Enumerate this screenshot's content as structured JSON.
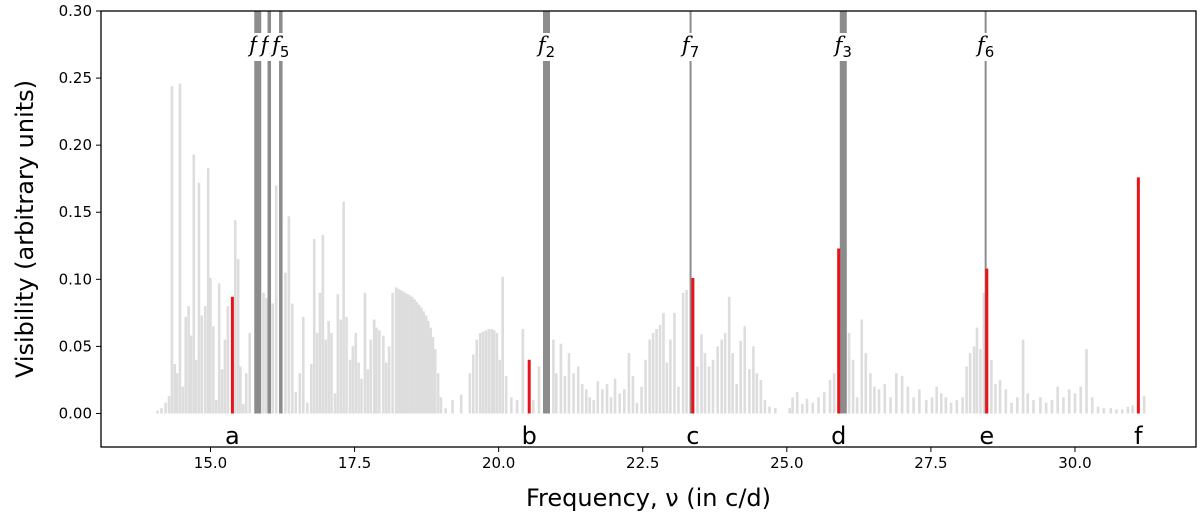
{
  "chart_data": {
    "type": "bar",
    "xlabel": "Frequency, ν (in c/d)",
    "ylabel": "Visibility (arbitrary units)",
    "xlim": [
      13.1,
      32.1
    ],
    "ylim": [
      -0.025,
      0.3
    ],
    "x_ticks": [
      15.0,
      17.5,
      20.0,
      22.5,
      25.0,
      27.5,
      30.0
    ],
    "x_tick_labels": [
      "15.0",
      "17.5",
      "20.0",
      "22.5",
      "25.0",
      "27.5",
      "30.0"
    ],
    "y_ticks": [
      0.0,
      0.05,
      0.1,
      0.15,
      0.2,
      0.25,
      0.3
    ],
    "y_tick_labels": [
      "0.00",
      "0.05",
      "0.10",
      "0.15",
      "0.20",
      "0.25",
      "0.30"
    ],
    "grid": false,
    "colors": {
      "background_bars": "#dddddd",
      "observed_lines": "#8c8c8c",
      "highlight": "#e8141b"
    },
    "observed_frequencies": [
      {
        "label": "f",
        "sub": "1",
        "x": 15.82,
        "strength": "thick"
      },
      {
        "label": "f",
        "sub": "4",
        "x": 16.02,
        "strength": "medium"
      },
      {
        "label": "f",
        "sub": "5",
        "x": 16.22,
        "strength": "medium"
      },
      {
        "label": "f",
        "sub": "2",
        "x": 20.83,
        "strength": "thick"
      },
      {
        "label": "f",
        "sub": "7",
        "x": 23.33,
        "strength": "thin"
      },
      {
        "label": "f",
        "sub": "3",
        "x": 25.98,
        "strength": "thick"
      },
      {
        "label": "f",
        "sub": "6",
        "x": 28.45,
        "strength": "thin"
      }
    ],
    "highlighted_modes": [
      {
        "label": "a",
        "x": 15.38,
        "value": 0.087
      },
      {
        "label": "b",
        "x": 20.53,
        "value": 0.04
      },
      {
        "label": "c",
        "x": 23.37,
        "value": 0.101
      },
      {
        "label": "d",
        "x": 25.9,
        "value": 0.123
      },
      {
        "label": "e",
        "x": 28.47,
        "value": 0.108
      },
      {
        "label": "f",
        "x": 31.1,
        "value": 0.176
      }
    ],
    "background_modes": [
      [
        14.08,
        0.002
      ],
      [
        14.15,
        0.004
      ],
      [
        14.22,
        0.008
      ],
      [
        14.28,
        0.013
      ],
      [
        14.33,
        0.244
      ],
      [
        14.38,
        0.037
      ],
      [
        14.42,
        0.03
      ],
      [
        14.47,
        0.246
      ],
      [
        14.52,
        0.02
      ],
      [
        14.57,
        0.072
      ],
      [
        14.62,
        0.08
      ],
      [
        14.66,
        0.058
      ],
      [
        14.71,
        0.193
      ],
      [
        14.75,
        0.04
      ],
      [
        14.8,
        0.172
      ],
      [
        14.85,
        0.073
      ],
      [
        14.91,
        0.08
      ],
      [
        14.96,
        0.183
      ],
      [
        15.0,
        0.101
      ],
      [
        15.05,
        0.065
      ],
      [
        15.1,
        0.01
      ],
      [
        15.15,
        0.097
      ],
      [
        15.2,
        0.033
      ],
      [
        15.25,
        0.055
      ],
      [
        15.3,
        0.08
      ],
      [
        15.43,
        0.144
      ],
      [
        15.48,
        0.115
      ],
      [
        15.52,
        0.035
      ],
      [
        15.57,
        0.007
      ],
      [
        15.62,
        0.03
      ],
      [
        15.68,
        0.06
      ],
      [
        15.92,
        0.09
      ],
      [
        15.97,
        0.086
      ],
      [
        16.08,
        0.082
      ],
      [
        16.14,
        0.17
      ],
      [
        16.3,
        0.105
      ],
      [
        16.36,
        0.147
      ],
      [
        16.42,
        0.082
      ],
      [
        16.48,
        0.016
      ],
      [
        16.55,
        0.03
      ],
      [
        16.61,
        0.072
      ],
      [
        16.68,
        0.008
      ],
      [
        16.75,
        0.037
      ],
      [
        16.8,
        0.13
      ],
      [
        16.85,
        0.06
      ],
      [
        16.9,
        0.09
      ],
      [
        16.95,
        0.133
      ],
      [
        17.0,
        0.055
      ],
      [
        17.05,
        0.069
      ],
      [
        17.1,
        0.06
      ],
      [
        17.16,
        0.015
      ],
      [
        17.21,
        0.089
      ],
      [
        17.26,
        0.07
      ],
      [
        17.31,
        0.158
      ],
      [
        17.36,
        0.072
      ],
      [
        17.42,
        0.04
      ],
      [
        17.47,
        0.05
      ],
      [
        17.52,
        0.06
      ],
      [
        17.57,
        0.038
      ],
      [
        17.62,
        0.026
      ],
      [
        17.68,
        0.09
      ],
      [
        17.73,
        0.033
      ],
      [
        17.78,
        0.055
      ],
      [
        17.84,
        0.07
      ],
      [
        17.88,
        0.064
      ],
      [
        17.93,
        0.062
      ],
      [
        18.0,
        0.058
      ],
      [
        18.05,
        0.038
      ],
      [
        18.1,
        0.05
      ],
      [
        18.16,
        0.09
      ],
      [
        18.22,
        0.094
      ],
      [
        18.26,
        0.093
      ],
      [
        18.3,
        0.092
      ],
      [
        18.34,
        0.091
      ],
      [
        18.38,
        0.09
      ],
      [
        18.42,
        0.089
      ],
      [
        18.46,
        0.088
      ],
      [
        18.5,
        0.087
      ],
      [
        18.54,
        0.085
      ],
      [
        18.58,
        0.083
      ],
      [
        18.62,
        0.081
      ],
      [
        18.66,
        0.079
      ],
      [
        18.7,
        0.076
      ],
      [
        18.74,
        0.073
      ],
      [
        18.78,
        0.069
      ],
      [
        18.82,
        0.064
      ],
      [
        18.86,
        0.057
      ],
      [
        18.9,
        0.048
      ],
      [
        18.95,
        0.03
      ],
      [
        19.0,
        0.012
      ],
      [
        19.08,
        0.004
      ],
      [
        19.2,
        0.01
      ],
      [
        19.35,
        0.014
      ],
      [
        19.5,
        0.03
      ],
      [
        19.56,
        0.044
      ],
      [
        19.62,
        0.055
      ],
      [
        19.68,
        0.06
      ],
      [
        19.73,
        0.061
      ],
      [
        19.78,
        0.062
      ],
      [
        19.83,
        0.063
      ],
      [
        19.88,
        0.063
      ],
      [
        19.92,
        0.062
      ],
      [
        19.97,
        0.06
      ],
      [
        20.02,
        0.04
      ],
      [
        20.07,
        0.102
      ],
      [
        20.13,
        0.028
      ],
      [
        20.22,
        0.012
      ],
      [
        20.32,
        0.01
      ],
      [
        20.42,
        0.063
      ],
      [
        20.6,
        0.01
      ],
      [
        20.7,
        0.035
      ],
      [
        20.95,
        0.055
      ],
      [
        21.0,
        0.03
      ],
      [
        21.08,
        0.052
      ],
      [
        21.15,
        0.028
      ],
      [
        21.22,
        0.045
      ],
      [
        21.3,
        0.03
      ],
      [
        21.38,
        0.035
      ],
      [
        21.45,
        0.022
      ],
      [
        21.52,
        0.018
      ],
      [
        21.58,
        0.012
      ],
      [
        21.65,
        0.01
      ],
      [
        21.72,
        0.024
      ],
      [
        21.8,
        0.018
      ],
      [
        21.88,
        0.022
      ],
      [
        21.95,
        0.012
      ],
      [
        22.02,
        0.026
      ],
      [
        22.1,
        0.015
      ],
      [
        22.18,
        0.018
      ],
      [
        22.26,
        0.045
      ],
      [
        22.33,
        0.028
      ],
      [
        22.4,
        0.008
      ],
      [
        22.48,
        0.02
      ],
      [
        22.55,
        0.04
      ],
      [
        22.62,
        0.055
      ],
      [
        22.68,
        0.06
      ],
      [
        22.74,
        0.063
      ],
      [
        22.8,
        0.066
      ],
      [
        22.86,
        0.075
      ],
      [
        22.92,
        0.038
      ],
      [
        22.98,
        0.055
      ],
      [
        23.05,
        0.075
      ],
      [
        23.12,
        0.02
      ],
      [
        23.2,
        0.09
      ],
      [
        23.26,
        0.092
      ],
      [
        23.45,
        0.035
      ],
      [
        23.52,
        0.059
      ],
      [
        23.58,
        0.045
      ],
      [
        23.65,
        0.035
      ],
      [
        23.72,
        0.04
      ],
      [
        23.8,
        0.05
      ],
      [
        23.87,
        0.055
      ],
      [
        23.93,
        0.06
      ],
      [
        24.0,
        0.087
      ],
      [
        24.06,
        0.045
      ],
      [
        24.13,
        0.022
      ],
      [
        24.2,
        0.054
      ],
      [
        24.27,
        0.065
      ],
      [
        24.35,
        0.033
      ],
      [
        24.42,
        0.05
      ],
      [
        24.48,
        0.03
      ],
      [
        24.55,
        0.025
      ],
      [
        24.62,
        0.01
      ],
      [
        24.7,
        0.005
      ],
      [
        24.8,
        0.004
      ],
      [
        25.05,
        0.004
      ],
      [
        25.1,
        0.012
      ],
      [
        25.18,
        0.016
      ],
      [
        25.27,
        0.007
      ],
      [
        25.35,
        0.011
      ],
      [
        25.45,
        0.008
      ],
      [
        25.55,
        0.012
      ],
      [
        25.65,
        0.016
      ],
      [
        25.75,
        0.025
      ],
      [
        25.82,
        0.03
      ],
      [
        26.08,
        0.06
      ],
      [
        26.15,
        0.04
      ],
      [
        26.22,
        0.012
      ],
      [
        26.3,
        0.07
      ],
      [
        26.37,
        0.045
      ],
      [
        26.45,
        0.03
      ],
      [
        26.52,
        0.02
      ],
      [
        26.6,
        0.018
      ],
      [
        26.7,
        0.022
      ],
      [
        26.8,
        0.012
      ],
      [
        26.9,
        0.03
      ],
      [
        27.0,
        0.028
      ],
      [
        27.1,
        0.02
      ],
      [
        27.2,
        0.012
      ],
      [
        27.3,
        0.018
      ],
      [
        27.42,
        0.01
      ],
      [
        27.52,
        0.012
      ],
      [
        27.6,
        0.02
      ],
      [
        27.68,
        0.015
      ],
      [
        27.76,
        0.012
      ],
      [
        27.85,
        0.008
      ],
      [
        27.95,
        0.01
      ],
      [
        28.05,
        0.012
      ],
      [
        28.12,
        0.035
      ],
      [
        28.18,
        0.045
      ],
      [
        28.25,
        0.05
      ],
      [
        28.3,
        0.064
      ],
      [
        28.36,
        0.048
      ],
      [
        28.42,
        0.09
      ],
      [
        28.55,
        0.04
      ],
      [
        28.62,
        0.022
      ],
      [
        28.7,
        0.025
      ],
      [
        28.8,
        0.018
      ],
      [
        28.9,
        0.008
      ],
      [
        29.0,
        0.012
      ],
      [
        29.1,
        0.055
      ],
      [
        29.18,
        0.015
      ],
      [
        29.28,
        0.01
      ],
      [
        29.4,
        0.012
      ],
      [
        29.5,
        0.008
      ],
      [
        29.6,
        0.01
      ],
      [
        29.7,
        0.02
      ],
      [
        29.8,
        0.012
      ],
      [
        29.9,
        0.018
      ],
      [
        30.0,
        0.015
      ],
      [
        30.1,
        0.02
      ],
      [
        30.2,
        0.048
      ],
      [
        30.3,
        0.012
      ],
      [
        30.4,
        0.005
      ],
      [
        30.5,
        0.004
      ],
      [
        30.62,
        0.004
      ],
      [
        30.72,
        0.003
      ],
      [
        30.82,
        0.003
      ],
      [
        30.92,
        0.005
      ],
      [
        31.0,
        0.006
      ],
      [
        31.2,
        0.013
      ]
    ]
  }
}
